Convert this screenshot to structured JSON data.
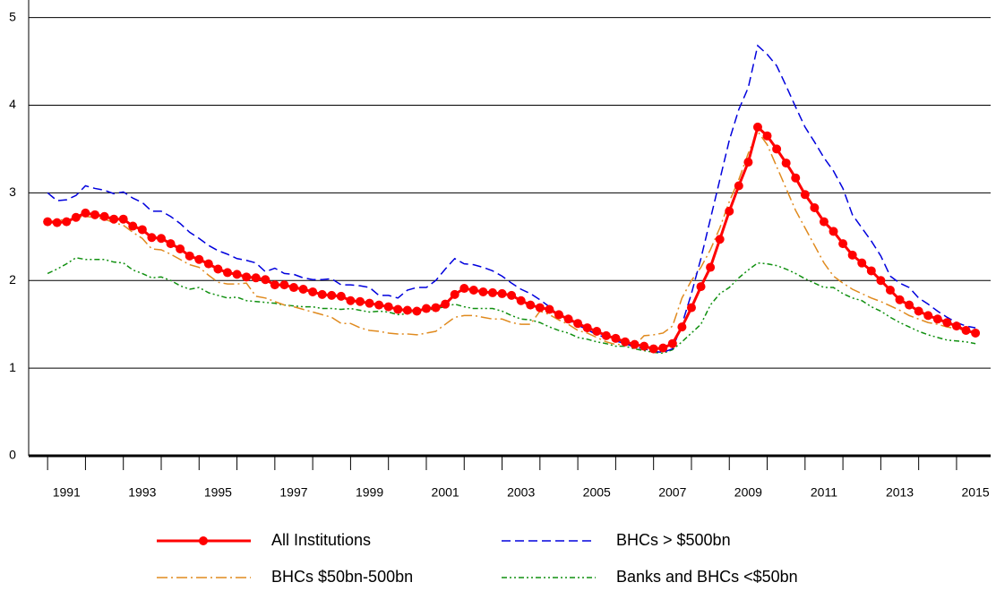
{
  "chart_data": {
    "type": "line",
    "x": [
      1991,
      1991.25,
      1991.5,
      1991.75,
      1992,
      1992.25,
      1992.5,
      1992.75,
      1993,
      1993.25,
      1993.5,
      1993.75,
      1994,
      1994.25,
      1994.5,
      1994.75,
      1995,
      1995.25,
      1995.5,
      1995.75,
      1996,
      1996.25,
      1996.5,
      1996.75,
      1997,
      1997.25,
      1997.5,
      1997.75,
      1998,
      1998.25,
      1998.5,
      1998.75,
      1999,
      1999.25,
      1999.5,
      1999.75,
      2000,
      2000.25,
      2000.5,
      2000.75,
      2001,
      2001.25,
      2001.5,
      2001.75,
      2002,
      2002.25,
      2002.5,
      2002.75,
      2003,
      2003.25,
      2003.5,
      2003.75,
      2004,
      2004.25,
      2004.5,
      2004.75,
      2005,
      2005.25,
      2005.5,
      2005.75,
      2006,
      2006.25,
      2006.5,
      2006.75,
      2007,
      2007.25,
      2007.5,
      2007.75,
      2008,
      2008.25,
      2008.5,
      2008.75,
      2009,
      2009.25,
      2009.5,
      2009.75,
      2010,
      2010.25,
      2010.5,
      2010.75,
      2011,
      2011.25,
      2011.5,
      2011.75,
      2012,
      2012.25,
      2012.5,
      2012.75,
      2013,
      2013.25,
      2013.5,
      2013.75,
      2014,
      2014.25,
      2014.5,
      2014.75,
      2015,
      2015.25,
      2015.5
    ],
    "series": [
      {
        "name": "All Institutions",
        "color": "#ff0000",
        "style": "solid",
        "marker": "circle",
        "values": [
          2.67,
          2.66,
          2.67,
          2.72,
          2.77,
          2.75,
          2.73,
          2.7,
          2.7,
          2.62,
          2.58,
          2.49,
          2.48,
          2.42,
          2.36,
          2.28,
          2.24,
          2.19,
          2.13,
          2.09,
          2.07,
          2.04,
          2.03,
          2.01,
          1.95,
          1.95,
          1.92,
          1.9,
          1.87,
          1.84,
          1.83,
          1.82,
          1.77,
          1.76,
          1.74,
          1.72,
          1.7,
          1.67,
          1.66,
          1.65,
          1.68,
          1.69,
          1.73,
          1.84,
          1.91,
          1.89,
          1.87,
          1.86,
          1.85,
          1.83,
          1.77,
          1.72,
          1.69,
          1.67,
          1.61,
          1.56,
          1.51,
          1.46,
          1.42,
          1.37,
          1.34,
          1.3,
          1.27,
          1.25,
          1.22,
          1.23,
          1.28,
          1.47,
          1.69,
          1.93,
          2.15,
          2.47,
          2.79,
          3.08,
          3.35,
          3.75,
          3.65,
          3.5,
          3.34,
          3.17,
          2.98,
          2.83,
          2.67,
          2.56,
          2.42,
          2.29,
          2.2,
          2.11,
          2.0,
          1.89,
          1.78,
          1.72,
          1.65,
          1.6,
          1.56,
          1.52,
          1.48,
          1.43,
          1.4
        ]
      },
      {
        "name": "BHCs > $500bn",
        "color": "#0000dd",
        "style": "dashed",
        "values": [
          3.0,
          2.91,
          2.92,
          2.97,
          3.08,
          3.05,
          3.03,
          2.99,
          3.01,
          2.94,
          2.89,
          2.79,
          2.79,
          2.73,
          2.65,
          2.55,
          2.48,
          2.4,
          2.34,
          2.3,
          2.25,
          2.23,
          2.2,
          2.1,
          2.14,
          2.08,
          2.07,
          2.03,
          2.01,
          2.01,
          2.02,
          1.95,
          1.95,
          1.94,
          1.92,
          1.83,
          1.83,
          1.8,
          1.89,
          1.92,
          1.92,
          2.0,
          2.13,
          2.25,
          2.19,
          2.18,
          2.15,
          2.11,
          2.05,
          1.97,
          1.9,
          1.85,
          1.78,
          1.7,
          1.6,
          1.55,
          1.49,
          1.44,
          1.38,
          1.35,
          1.31,
          1.28,
          1.24,
          1.22,
          1.19,
          1.18,
          1.22,
          1.5,
          1.85,
          2.25,
          2.7,
          3.15,
          3.6,
          3.95,
          4.2,
          4.68,
          4.58,
          4.45,
          4.22,
          3.98,
          3.75,
          3.58,
          3.4,
          3.25,
          3.05,
          2.75,
          2.6,
          2.45,
          2.28,
          2.05,
          1.97,
          1.92,
          1.8,
          1.73,
          1.65,
          1.58,
          1.52,
          1.48,
          1.46
        ]
      },
      {
        "name": "BHCs $50bn-500bn",
        "color": "#e08a1e",
        "style": "dashdot",
        "values": [
          2.65,
          2.7,
          2.68,
          2.72,
          2.73,
          2.72,
          2.7,
          2.66,
          2.63,
          2.55,
          2.48,
          2.36,
          2.35,
          2.3,
          2.24,
          2.18,
          2.15,
          2.06,
          1.98,
          1.96,
          1.96,
          1.97,
          1.82,
          1.8,
          1.76,
          1.72,
          1.7,
          1.67,
          1.64,
          1.61,
          1.58,
          1.51,
          1.51,
          1.46,
          1.43,
          1.42,
          1.4,
          1.39,
          1.39,
          1.38,
          1.4,
          1.42,
          1.5,
          1.58,
          1.6,
          1.6,
          1.58,
          1.56,
          1.56,
          1.52,
          1.5,
          1.5,
          1.65,
          1.61,
          1.55,
          1.5,
          1.43,
          1.4,
          1.35,
          1.3,
          1.27,
          1.27,
          1.26,
          1.37,
          1.38,
          1.4,
          1.48,
          1.8,
          2.0,
          2.15,
          2.35,
          2.6,
          2.9,
          3.15,
          3.45,
          3.7,
          3.55,
          3.3,
          3.05,
          2.8,
          2.6,
          2.4,
          2.2,
          2.05,
          1.97,
          1.9,
          1.85,
          1.8,
          1.76,
          1.71,
          1.66,
          1.6,
          1.56,
          1.52,
          1.5,
          1.47,
          1.45,
          1.43,
          1.4
        ]
      },
      {
        "name": "Banks and BHCs <$50bn",
        "color": "#109010",
        "style": "dashdotdot",
        "values": [
          2.08,
          2.13,
          2.19,
          2.26,
          2.24,
          2.24,
          2.24,
          2.21,
          2.2,
          2.12,
          2.08,
          2.03,
          2.04,
          2.0,
          1.94,
          1.9,
          1.92,
          1.86,
          1.83,
          1.8,
          1.81,
          1.77,
          1.76,
          1.75,
          1.74,
          1.72,
          1.71,
          1.7,
          1.7,
          1.68,
          1.68,
          1.67,
          1.68,
          1.66,
          1.64,
          1.65,
          1.64,
          1.61,
          1.62,
          1.66,
          1.66,
          1.68,
          1.7,
          1.73,
          1.7,
          1.68,
          1.68,
          1.68,
          1.65,
          1.6,
          1.56,
          1.55,
          1.52,
          1.47,
          1.43,
          1.4,
          1.35,
          1.33,
          1.3,
          1.28,
          1.25,
          1.25,
          1.22,
          1.2,
          1.18,
          1.17,
          1.21,
          1.3,
          1.4,
          1.5,
          1.72,
          1.85,
          1.92,
          2.03,
          2.12,
          2.2,
          2.19,
          2.17,
          2.13,
          2.08,
          2.02,
          1.97,
          1.92,
          1.92,
          1.85,
          1.8,
          1.77,
          1.7,
          1.65,
          1.58,
          1.52,
          1.47,
          1.42,
          1.38,
          1.35,
          1.32,
          1.31,
          1.3,
          1.28
        ]
      }
    ],
    "xlim": [
      1990.5,
      2015.9
    ],
    "xticks": [
      {
        "value": 1991.5,
        "label": "1991"
      },
      {
        "value": 1993.5,
        "label": "1993"
      },
      {
        "value": 1995.5,
        "label": "1995"
      },
      {
        "value": 1997.5,
        "label": "1997"
      },
      {
        "value": 1999.5,
        "label": "1999"
      },
      {
        "value": 2001.5,
        "label": "2001"
      },
      {
        "value": 2003.5,
        "label": "2003"
      },
      {
        "value": 2005.5,
        "label": "2005"
      },
      {
        "value": 2007.5,
        "label": "2007"
      },
      {
        "value": 2009.5,
        "label": "2009"
      },
      {
        "value": 2011.5,
        "label": "2011"
      },
      {
        "value": 2013.5,
        "label": "2013"
      },
      {
        "value": 2015.5,
        "label": "2015"
      }
    ],
    "xminorticks": [
      1991,
      1992,
      1993,
      1994,
      1995,
      1996,
      1997,
      1998,
      1999,
      2000,
      2001,
      2002,
      2003,
      2004,
      2005,
      2006,
      2007,
      2008,
      2009,
      2010,
      2011,
      2012,
      2013,
      2014,
      2015
    ],
    "ylim": [
      0,
      5.2
    ],
    "yticks": [
      0,
      1,
      2,
      3,
      4,
      5
    ],
    "grid": true,
    "legend": "bottom"
  }
}
